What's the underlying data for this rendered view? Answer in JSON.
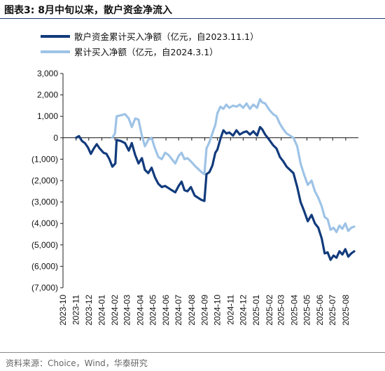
{
  "figure": {
    "title": "图表3:  8月中旬以来，散户资金净流入",
    "source": "资料来源：Choice，Wind，华泰研究"
  },
  "chart_data": {
    "type": "line",
    "ylim": [
      -7000,
      3000
    ],
    "yticks": [
      3000,
      2000,
      1000,
      0,
      -1000,
      -2000,
      -3000,
      -4000,
      -5000,
      -6000,
      -7000
    ],
    "ytick_labels": [
      "3,000",
      "2,000",
      "1,000",
      "0",
      "(1,000)",
      "(2,000)",
      "(3,000)",
      "(4,000)",
      "(5,000)",
      "(6,000)",
      "(7,000)"
    ],
    "xticks": [
      "2023-10",
      "2023-11",
      "2023-12",
      "2024-01",
      "2024-02",
      "2024-03",
      "2024-04",
      "2024-05",
      "2024-06",
      "2024-07",
      "2024-08",
      "2024-09",
      "2024-10",
      "2024-11",
      "2024-12",
      "2025-01",
      "2025-02",
      "2025-03",
      "2025-04",
      "2025-05",
      "2025-06",
      "2025-07",
      "2025-08"
    ],
    "legend_position": "top-left",
    "grid": false,
    "series": [
      {
        "name": "散户资金累计买入净额（亿元，自2023.11.1）",
        "color": "#123b7c",
        "points": [
          [
            "2023-11-01",
            0
          ],
          [
            "2023-11-08",
            80
          ],
          [
            "2023-11-15",
            -150
          ],
          [
            "2023-11-22",
            -250
          ],
          [
            "2023-11-29",
            -450
          ],
          [
            "2023-12-06",
            -750
          ],
          [
            "2023-12-13",
            -500
          ],
          [
            "2023-12-20",
            -300
          ],
          [
            "2023-12-27",
            -500
          ],
          [
            "2024-01-05",
            -700
          ],
          [
            "2024-01-12",
            -750
          ],
          [
            "2024-01-19",
            -1000
          ],
          [
            "2024-01-26",
            -1350
          ],
          [
            "2024-02-02",
            -1200
          ],
          [
            "2024-02-05",
            -100
          ],
          [
            "2024-02-15",
            -150
          ],
          [
            "2024-02-25",
            -250
          ],
          [
            "2024-03-05",
            -600
          ],
          [
            "2024-03-12",
            -250
          ],
          [
            "2024-03-20",
            -800
          ],
          [
            "2024-03-28",
            -1200
          ],
          [
            "2024-04-05",
            -950
          ],
          [
            "2024-04-12",
            -1500
          ],
          [
            "2024-04-20",
            -1650
          ],
          [
            "2024-04-28",
            -1400
          ],
          [
            "2024-05-06",
            -1850
          ],
          [
            "2024-05-14",
            -2150
          ],
          [
            "2024-05-22",
            -2300
          ],
          [
            "2024-05-30",
            -2250
          ],
          [
            "2024-06-07",
            -2350
          ],
          [
            "2024-06-15",
            -2450
          ],
          [
            "2024-06-23",
            -2550
          ],
          [
            "2024-07-01",
            -2250
          ],
          [
            "2024-07-08",
            -2050
          ],
          [
            "2024-07-15",
            -2450
          ],
          [
            "2024-07-22",
            -2500
          ],
          [
            "2024-07-30",
            -2300
          ],
          [
            "2024-08-08",
            -2700
          ],
          [
            "2024-08-16",
            -2800
          ],
          [
            "2024-08-24",
            -2900
          ],
          [
            "2024-08-31",
            -2950
          ],
          [
            "2024-09-05",
            -1700
          ],
          [
            "2024-09-12",
            -1600
          ],
          [
            "2024-09-19",
            -1300
          ],
          [
            "2024-09-26",
            -700
          ],
          [
            "2024-10-01",
            -550
          ],
          [
            "2024-10-08",
            -50
          ],
          [
            "2024-10-15",
            350
          ],
          [
            "2024-10-22",
            200
          ],
          [
            "2024-10-29",
            250
          ],
          [
            "2024-11-07",
            100
          ],
          [
            "2024-11-15",
            350
          ],
          [
            "2024-11-23",
            150
          ],
          [
            "2024-12-01",
            250
          ],
          [
            "2024-12-09",
            300
          ],
          [
            "2024-12-17",
            150
          ],
          [
            "2024-12-25",
            300
          ],
          [
            "2025-01-03",
            100
          ],
          [
            "2025-01-10",
            500
          ],
          [
            "2025-01-15",
            400
          ],
          [
            "2025-01-22",
            150
          ],
          [
            "2025-02-01",
            -100
          ],
          [
            "2025-02-10",
            -350
          ],
          [
            "2025-02-18",
            -500
          ],
          [
            "2025-02-26",
            -900
          ],
          [
            "2025-03-06",
            -1100
          ],
          [
            "2025-03-14",
            -1350
          ],
          [
            "2025-03-22",
            -1500
          ],
          [
            "2025-03-30",
            -1650
          ],
          [
            "2025-04-08",
            -2300
          ],
          [
            "2025-04-16",
            -3000
          ],
          [
            "2025-04-24",
            -3400
          ],
          [
            "2025-05-03",
            -3900
          ],
          [
            "2025-05-12",
            -3600
          ],
          [
            "2025-05-20",
            -4000
          ],
          [
            "2025-05-28",
            -4200
          ],
          [
            "2025-06-05",
            -4700
          ],
          [
            "2025-06-12",
            -5400
          ],
          [
            "2025-06-19",
            -5350
          ],
          [
            "2025-06-26",
            -5700
          ],
          [
            "2025-07-03",
            -5500
          ],
          [
            "2025-07-10",
            -5600
          ],
          [
            "2025-07-17",
            -5300
          ],
          [
            "2025-07-24",
            -5450
          ],
          [
            "2025-07-31",
            -5200
          ],
          [
            "2025-08-07",
            -5550
          ],
          [
            "2025-08-14",
            -5400
          ],
          [
            "2025-08-21",
            -5300
          ]
        ]
      },
      {
        "name": "累计买入净额（亿元，自2024.3.1）",
        "color": "#9ec3e6",
        "points": [
          [
            "2024-01-26",
            0
          ],
          [
            "2024-02-01",
            200
          ],
          [
            "2024-02-05",
            1000
          ],
          [
            "2024-02-15",
            1050
          ],
          [
            "2024-02-25",
            1100
          ],
          [
            "2024-03-05",
            900
          ],
          [
            "2024-03-12",
            500
          ],
          [
            "2024-03-20",
            900
          ],
          [
            "2024-03-28",
            850
          ],
          [
            "2024-04-05",
            100
          ],
          [
            "2024-04-12",
            -400
          ],
          [
            "2024-04-20",
            -100
          ],
          [
            "2024-04-28",
            0
          ],
          [
            "2024-05-06",
            -500
          ],
          [
            "2024-05-14",
            -900
          ],
          [
            "2024-05-22",
            -1000
          ],
          [
            "2024-05-30",
            -700
          ],
          [
            "2024-06-07",
            -800
          ],
          [
            "2024-06-15",
            -1000
          ],
          [
            "2024-06-23",
            -1200
          ],
          [
            "2024-07-01",
            -850
          ],
          [
            "2024-07-08",
            -700
          ],
          [
            "2024-07-15",
            -1000
          ],
          [
            "2024-07-22",
            -950
          ],
          [
            "2024-07-30",
            -1100
          ],
          [
            "2024-08-08",
            -1300
          ],
          [
            "2024-08-16",
            -1450
          ],
          [
            "2024-08-24",
            -1600
          ],
          [
            "2024-08-31",
            -1700
          ],
          [
            "2024-09-05",
            -500
          ],
          [
            "2024-09-12",
            -200
          ],
          [
            "2024-09-19",
            200
          ],
          [
            "2024-09-26",
            600
          ],
          [
            "2024-10-01",
            1150
          ],
          [
            "2024-10-08",
            1450
          ],
          [
            "2024-10-15",
            1350
          ],
          [
            "2024-10-22",
            1550
          ],
          [
            "2024-10-29",
            1400
          ],
          [
            "2024-11-07",
            1500
          ],
          [
            "2024-11-15",
            1450
          ],
          [
            "2024-11-23",
            1550
          ],
          [
            "2024-12-01",
            1400
          ],
          [
            "2024-12-09",
            1600
          ],
          [
            "2024-12-17",
            1350
          ],
          [
            "2024-12-25",
            1550
          ],
          [
            "2025-01-03",
            1400
          ],
          [
            "2025-01-10",
            1800
          ],
          [
            "2025-01-15",
            1650
          ],
          [
            "2025-01-22",
            1600
          ],
          [
            "2025-02-01",
            1300
          ],
          [
            "2025-02-10",
            1100
          ],
          [
            "2025-02-18",
            1000
          ],
          [
            "2025-02-26",
            650
          ],
          [
            "2025-03-06",
            400
          ],
          [
            "2025-03-14",
            200
          ],
          [
            "2025-03-22",
            100
          ],
          [
            "2025-03-30",
            0
          ],
          [
            "2025-04-08",
            -400
          ],
          [
            "2025-04-16",
            -1200
          ],
          [
            "2025-04-24",
            -1700
          ],
          [
            "2025-05-03",
            -2200
          ],
          [
            "2025-05-12",
            -2000
          ],
          [
            "2025-05-20",
            -2500
          ],
          [
            "2025-05-28",
            -2800
          ],
          [
            "2025-06-05",
            -3200
          ],
          [
            "2025-06-12",
            -3700
          ],
          [
            "2025-06-19",
            -3800
          ],
          [
            "2025-06-26",
            -4300
          ],
          [
            "2025-07-03",
            -4200
          ],
          [
            "2025-07-10",
            -4400
          ],
          [
            "2025-07-17",
            -4100
          ],
          [
            "2025-07-24",
            -4250
          ],
          [
            "2025-07-31",
            -4000
          ],
          [
            "2025-08-07",
            -4350
          ],
          [
            "2025-08-14",
            -4200
          ],
          [
            "2025-08-21",
            -4150
          ]
        ]
      }
    ]
  }
}
